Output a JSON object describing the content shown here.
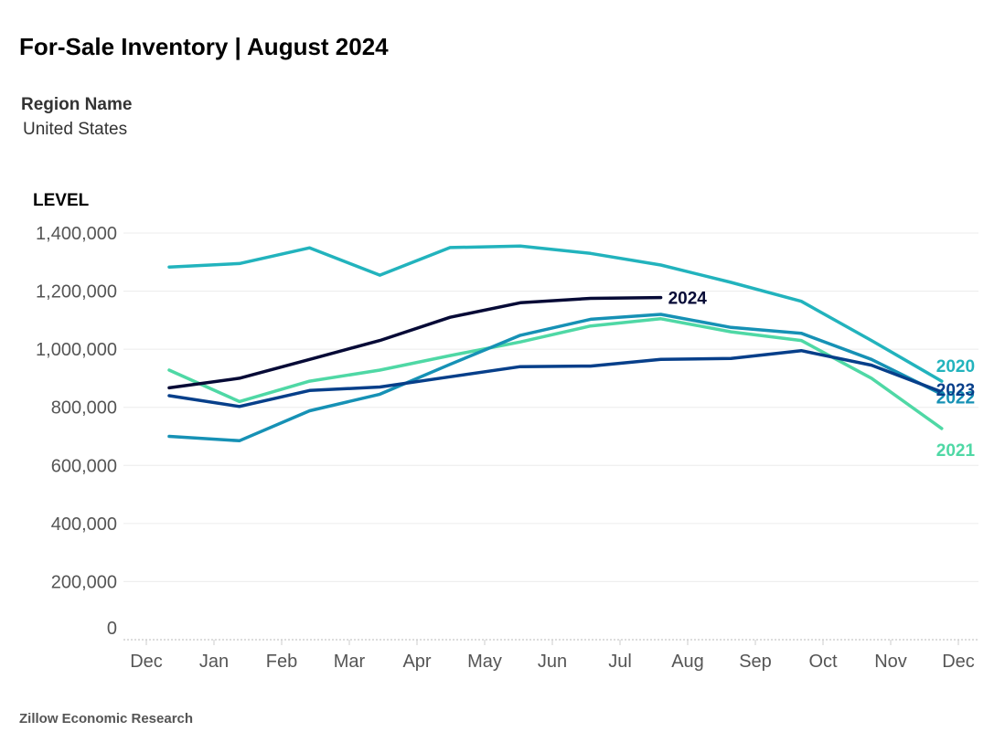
{
  "title": "For-Sale Inventory | August 2024",
  "filter": {
    "label": "Region Name",
    "value": "United States"
  },
  "source": "Zillow Economic Research",
  "chart_data": {
    "type": "line",
    "ylabel": "LEVEL",
    "ylim": [
      0,
      1400000
    ],
    "yticks": [
      0,
      200000,
      400000,
      600000,
      800000,
      1000000,
      1200000,
      1400000
    ],
    "ytick_labels": [
      "0",
      "200,000",
      "400,000",
      "600,000",
      "800,000",
      "1,000,000",
      "1,200,000",
      "1,400,000"
    ],
    "xticks": [
      "Dec",
      "Jan",
      "Feb",
      "Mar",
      "Apr",
      "May",
      "Jun",
      "Jul",
      "Aug",
      "Sep",
      "Oct",
      "Nov",
      "Dec"
    ],
    "x_points": [
      "Jan",
      "Feb",
      "Mar",
      "Apr",
      "May",
      "Jun",
      "Jul",
      "Aug",
      "Sep",
      "Oct",
      "Nov",
      "Dec"
    ],
    "grid": true,
    "series": [
      {
        "name": "2020",
        "color": "#22b3bd",
        "values": [
          1283000,
          1295000,
          1349000,
          1255000,
          1350000,
          1355000,
          1330000,
          1290000,
          1230000,
          1165000,
          1030000,
          890000
        ]
      },
      {
        "name": "2021",
        "color": "#4fd8a5",
        "values": [
          928000,
          820000,
          890000,
          928000,
          978000,
          1025000,
          1080000,
          1105000,
          1060000,
          1030000,
          900000,
          727000
        ]
      },
      {
        "name": "2022",
        "color": "#1691b5",
        "values": [
          700000,
          685000,
          788000,
          845000,
          948000,
          1048000,
          1103000,
          1120000,
          1075000,
          1055000,
          965000,
          845000
        ]
      },
      {
        "name": "2023",
        "color": "#073f8a",
        "values": [
          840000,
          803000,
          858000,
          870000,
          905000,
          940000,
          942000,
          965000,
          968000,
          995000,
          945000,
          853000
        ]
      },
      {
        "name": "2024",
        "color": "#060a36",
        "values": [
          867000,
          900000,
          965000,
          1030000,
          1110000,
          1160000,
          1175000,
          1178000
        ]
      }
    ],
    "label_overlap_note": "2023"
  }
}
